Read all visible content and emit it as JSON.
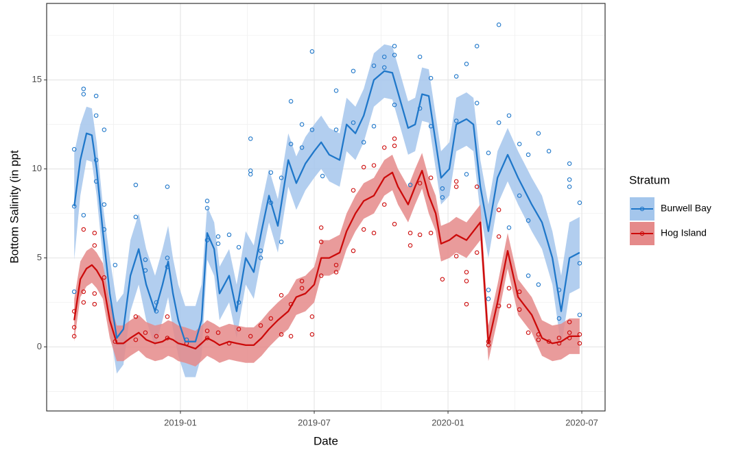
{
  "chart_data": {
    "type": "line",
    "x_label": "Date",
    "y_label": "Bottom Salinity (in ppt",
    "legend_title": "Stratum",
    "legend": "right",
    "grid": true,
    "xlim": [
      2018.5,
      2020.587
    ],
    "ylim": [
      -3.6,
      19.3
    ],
    "xticks": [
      {
        "value": 2019.0,
        "label": "2019-01"
      },
      {
        "value": 2019.5,
        "label": "2019-07"
      },
      {
        "value": 2020.0,
        "label": "2020-01"
      },
      {
        "value": 2020.5,
        "label": "2020-07"
      }
    ],
    "minor_xticks": [
      2018.75,
      2019.25,
      2019.75,
      2020.25
    ],
    "yticks": [
      0,
      5,
      10,
      15
    ],
    "minor_yticks": [
      -2.5,
      2.5,
      7.5,
      12.5,
      17.5
    ],
    "x": [
      2018.603,
      2018.626,
      2018.649,
      2018.669,
      2018.687,
      2018.71,
      2018.736,
      2018.762,
      2018.787,
      2018.813,
      2018.844,
      2018.872,
      2018.905,
      2018.933,
      2018.954,
      2018.972,
      2018.992,
      2019.018,
      2019.056,
      2019.079,
      2019.1,
      2019.126,
      2019.146,
      2019.182,
      2019.21,
      2019.244,
      2019.274,
      2019.303,
      2019.331,
      2019.364,
      2019.403,
      2019.433,
      2019.467,
      2019.5,
      2019.526,
      2019.556,
      2019.595,
      2019.621,
      2019.654,
      2019.685,
      2019.723,
      2019.762,
      2019.792,
      2019.813,
      2019.851,
      2019.877,
      2019.903,
      2019.928,
      2019.954,
      2019.974,
      2020.005,
      2020.031,
      2020.069,
      2020.095,
      2020.121,
      2020.151,
      2020.185,
      2020.223,
      2020.262,
      2020.313,
      2020.351,
      2020.39,
      2020.423,
      2020.454,
      2020.492
    ],
    "series": [
      {
        "name": "Burwell Bay",
        "color": "#1f77c9",
        "fill_color": "#a4c6ec",
        "values": [
          7.9,
          10.5,
          12.0,
          11.9,
          10.0,
          6.5,
          3.0,
          0.5,
          1.0,
          4.0,
          5.5,
          3.5,
          2.0,
          3.5,
          4.8,
          3.0,
          1.5,
          0.3,
          0.3,
          1.5,
          6.4,
          5.5,
          3.0,
          4.0,
          2.0,
          5.0,
          4.2,
          6.5,
          8.5,
          6.8,
          10.5,
          9.2,
          10.3,
          11.0,
          11.5,
          10.8,
          10.5,
          12.5,
          12.0,
          13.0,
          15.0,
          15.5,
          15.4,
          14.3,
          12.3,
          12.5,
          14.2,
          14.1,
          11.5,
          9.5,
          10.0,
          12.5,
          12.8,
          12.5,
          9.0,
          6.5,
          9.5,
          10.8,
          9.5,
          8.0,
          7.0,
          5.0,
          2.0,
          5.0,
          5.3
        ],
        "lower": [
          4.9,
          8.5,
          10.5,
          10.4,
          8.5,
          5.0,
          1.0,
          -1.5,
          -1.0,
          2.0,
          3.5,
          1.5,
          0.0,
          1.5,
          2.8,
          1.0,
          -0.5,
          -1.7,
          -1.7,
          -0.5,
          4.9,
          4.0,
          1.5,
          2.5,
          0.5,
          3.5,
          2.7,
          5.0,
          7.0,
          5.3,
          9.0,
          7.7,
          8.8,
          9.5,
          10.0,
          9.3,
          9.0,
          11.0,
          10.5,
          11.5,
          13.5,
          14.0,
          13.9,
          12.8,
          10.8,
          11.0,
          12.7,
          12.6,
          10.0,
          8.0,
          8.5,
          11.0,
          11.3,
          11.0,
          7.5,
          5.0,
          8.0,
          9.3,
          8.0,
          6.5,
          5.5,
          3.5,
          0.0,
          3.0,
          3.3
        ],
        "upper": [
          10.9,
          12.5,
          13.5,
          13.4,
          11.5,
          8.0,
          5.0,
          2.5,
          3.0,
          6.0,
          7.5,
          5.5,
          4.0,
          5.5,
          6.8,
          5.0,
          3.5,
          2.3,
          2.3,
          3.5,
          7.9,
          7.0,
          4.5,
          5.5,
          3.5,
          6.5,
          5.7,
          8.0,
          10.0,
          8.3,
          12.0,
          10.7,
          11.8,
          12.5,
          13.0,
          12.3,
          12.0,
          14.0,
          13.5,
          14.5,
          16.5,
          17.0,
          16.9,
          15.8,
          13.8,
          14.0,
          15.7,
          15.6,
          13.0,
          11.0,
          11.5,
          14.0,
          14.3,
          14.0,
          10.5,
          8.0,
          11.0,
          12.3,
          11.0,
          9.5,
          8.5,
          6.5,
          4.0,
          7.0,
          7.3
        ],
        "points_x": [
          2018.603,
          2018.603,
          2018.603,
          2018.638,
          2018.638,
          2018.638,
          2018.685,
          2018.685,
          2018.685,
          2018.685,
          2018.715,
          2018.715,
          2018.715,
          2018.756,
          2018.833,
          2018.833,
          2018.869,
          2018.869,
          2018.91,
          2018.91,
          2018.951,
          2018.951,
          2018.951,
          2019.023,
          2019.1,
          2019.1,
          2019.1,
          2019.141,
          2019.141,
          2019.182,
          2019.218,
          2019.218,
          2019.262,
          2019.262,
          2019.262,
          2019.3,
          2019.3,
          2019.338,
          2019.338,
          2019.377,
          2019.377,
          2019.413,
          2019.413,
          2019.454,
          2019.454,
          2019.492,
          2019.492,
          2019.531,
          2019.582,
          2019.582,
          2019.646,
          2019.646,
          2019.685,
          2019.723,
          2019.723,
          2019.762,
          2019.762,
          2019.8,
          2019.8,
          2019.8,
          2019.859,
          2019.895,
          2019.895,
          2019.936,
          2019.936,
          2019.979,
          2019.979,
          2020.031,
          2020.031,
          2020.069,
          2020.069,
          2020.108,
          2020.108,
          2020.151,
          2020.151,
          2020.151,
          2020.19,
          2020.19,
          2020.228,
          2020.228,
          2020.267,
          2020.267,
          2020.3,
          2020.3,
          2020.3,
          2020.338,
          2020.338,
          2020.377,
          2020.415,
          2020.415,
          2020.454,
          2020.454,
          2020.454,
          2020.492,
          2020.492,
          2020.492
        ],
        "points_y": [
          11.1,
          7.9,
          3.1,
          14.5,
          14.2,
          7.4,
          14.1,
          13.0,
          10.5,
          9.3,
          12.2,
          8.0,
          6.6,
          4.6,
          9.1,
          7.3,
          4.9,
          4.3,
          2.5,
          2.0,
          9.0,
          5.0,
          4.5,
          0.4,
          8.2,
          7.8,
          6.0,
          6.2,
          5.8,
          6.3,
          5.6,
          2.5,
          11.7,
          9.9,
          9.7,
          5.4,
          5.0,
          9.8,
          8.1,
          9.5,
          5.9,
          13.8,
          11.4,
          12.5,
          11.2,
          16.6,
          12.2,
          9.6,
          14.4,
          12.2,
          15.5,
          12.6,
          11.5,
          15.8,
          12.4,
          16.3,
          15.7,
          16.9,
          16.4,
          13.6,
          9.1,
          16.3,
          13.4,
          15.1,
          12.4,
          8.9,
          8.4,
          15.2,
          12.7,
          15.9,
          9.7,
          16.9,
          13.7,
          10.9,
          3.2,
          2.7,
          18.1,
          12.6,
          13.0,
          6.7,
          11.4,
          8.5,
          10.8,
          7.1,
          4.0,
          12.0,
          3.5,
          11.0,
          3.2,
          1.6,
          10.3,
          9.4,
          9.0,
          8.1,
          4.7,
          1.8
        ]
      },
      {
        "name": "Hog Island",
        "color": "#cc0a0a",
        "fill_color": "#e58a8a",
        "values": [
          1.5,
          3.8,
          4.4,
          4.6,
          4.3,
          3.7,
          1.5,
          0.2,
          0.2,
          0.5,
          0.8,
          0.4,
          0.2,
          0.3,
          0.5,
          0.4,
          0.2,
          0.1,
          -0.1,
          0.2,
          0.5,
          0.3,
          0.1,
          0.3,
          0.2,
          0.1,
          0.1,
          0.5,
          1.0,
          1.5,
          2.0,
          2.8,
          3.0,
          3.5,
          5.0,
          5.0,
          5.3,
          6.5,
          7.5,
          8.2,
          8.5,
          9.5,
          9.8,
          9.0,
          8.0,
          9.0,
          9.9,
          8.5,
          7.5,
          5.8,
          6.0,
          6.3,
          6.0,
          6.5,
          7.0,
          0.2,
          2.5,
          5.4,
          2.8,
          1.8,
          0.5,
          0.2,
          0.3,
          0.6,
          0.6
        ],
        "lower": [
          0.3,
          2.8,
          3.4,
          3.6,
          3.3,
          2.7,
          0.5,
          -0.8,
          -0.8,
          -0.5,
          -0.2,
          -0.6,
          -0.8,
          -0.7,
          -0.5,
          -0.6,
          -0.8,
          -0.9,
          -1.1,
          -0.8,
          -0.5,
          -0.7,
          -0.9,
          -0.7,
          -0.8,
          -0.9,
          -0.9,
          -0.5,
          0.0,
          0.5,
          1.0,
          1.8,
          2.0,
          2.5,
          4.0,
          4.0,
          4.3,
          5.5,
          6.5,
          7.2,
          7.5,
          8.5,
          8.8,
          8.0,
          7.0,
          8.0,
          8.9,
          7.5,
          6.5,
          4.8,
          5.0,
          5.3,
          5.0,
          5.5,
          6.0,
          -0.8,
          1.5,
          4.4,
          1.8,
          0.8,
          -0.5,
          -0.8,
          -0.7,
          -0.4,
          -0.4
        ],
        "upper": [
          2.7,
          4.8,
          5.4,
          5.6,
          5.3,
          4.7,
          2.5,
          1.2,
          1.2,
          1.5,
          1.8,
          1.4,
          1.2,
          1.3,
          1.5,
          1.4,
          1.2,
          1.1,
          0.9,
          1.2,
          1.5,
          1.3,
          1.1,
          1.3,
          1.2,
          1.1,
          1.1,
          1.5,
          2.0,
          2.5,
          3.0,
          3.8,
          4.0,
          4.5,
          6.0,
          6.0,
          6.3,
          7.5,
          8.5,
          9.2,
          9.5,
          10.5,
          10.8,
          10.0,
          9.0,
          10.0,
          10.9,
          9.5,
          8.5,
          6.8,
          7.0,
          7.3,
          7.0,
          7.5,
          8.0,
          1.2,
          3.5,
          6.4,
          3.8,
          2.8,
          1.5,
          1.2,
          1.3,
          1.6,
          1.6
        ],
        "points_x": [
          2018.603,
          2018.603,
          2018.603,
          2018.638,
          2018.638,
          2018.638,
          2018.679,
          2018.679,
          2018.679,
          2018.679,
          2018.715,
          2018.756,
          2018.833,
          2018.833,
          2018.869,
          2018.91,
          2018.951,
          2018.951,
          2019.023,
          2019.1,
          2019.1,
          2019.141,
          2019.182,
          2019.218,
          2019.262,
          2019.3,
          2019.338,
          2019.377,
          2019.377,
          2019.413,
          2019.413,
          2019.454,
          2019.454,
          2019.492,
          2019.492,
          2019.526,
          2019.526,
          2019.526,
          2019.582,
          2019.582,
          2019.646,
          2019.646,
          2019.685,
          2019.685,
          2019.723,
          2019.723,
          2019.762,
          2019.762,
          2019.8,
          2019.8,
          2019.8,
          2019.859,
          2019.859,
          2019.895,
          2019.895,
          2019.936,
          2019.936,
          2019.979,
          2020.031,
          2020.031,
          2020.031,
          2020.069,
          2020.069,
          2020.069,
          2020.108,
          2020.108,
          2020.151,
          2020.151,
          2020.19,
          2020.19,
          2020.19,
          2020.228,
          2020.228,
          2020.267,
          2020.267,
          2020.3,
          2020.338,
          2020.338,
          2020.377,
          2020.415,
          2020.415,
          2020.454,
          2020.454,
          2020.454,
          2020.492,
          2020.492
        ],
        "points_y": [
          2.0,
          1.1,
          0.6,
          6.6,
          3.1,
          2.5,
          6.4,
          5.7,
          3.0,
          2.4,
          3.9,
          0.3,
          1.7,
          0.4,
          0.8,
          0.6,
          1.7,
          0.5,
          0.2,
          0.9,
          0.5,
          0.8,
          0.2,
          1.0,
          0.6,
          1.2,
          1.6,
          2.9,
          0.7,
          2.4,
          0.6,
          3.7,
          3.3,
          1.7,
          0.7,
          6.7,
          5.9,
          4.0,
          4.6,
          4.2,
          8.8,
          5.4,
          10.1,
          6.6,
          10.2,
          6.4,
          11.2,
          8.0,
          11.7,
          11.3,
          6.9,
          6.4,
          5.7,
          9.2,
          6.3,
          9.5,
          6.4,
          3.8,
          9.3,
          9.0,
          5.1,
          4.2,
          3.7,
          2.4,
          9.0,
          5.3,
          0.3,
          0.1,
          7.7,
          6.2,
          2.3,
          3.3,
          2.3,
          3.1,
          2.1,
          0.8,
          0.7,
          0.4,
          0.3,
          0.5,
          0.2,
          1.4,
          0.8,
          0.5,
          0.7,
          0.2
        ]
      }
    ]
  }
}
